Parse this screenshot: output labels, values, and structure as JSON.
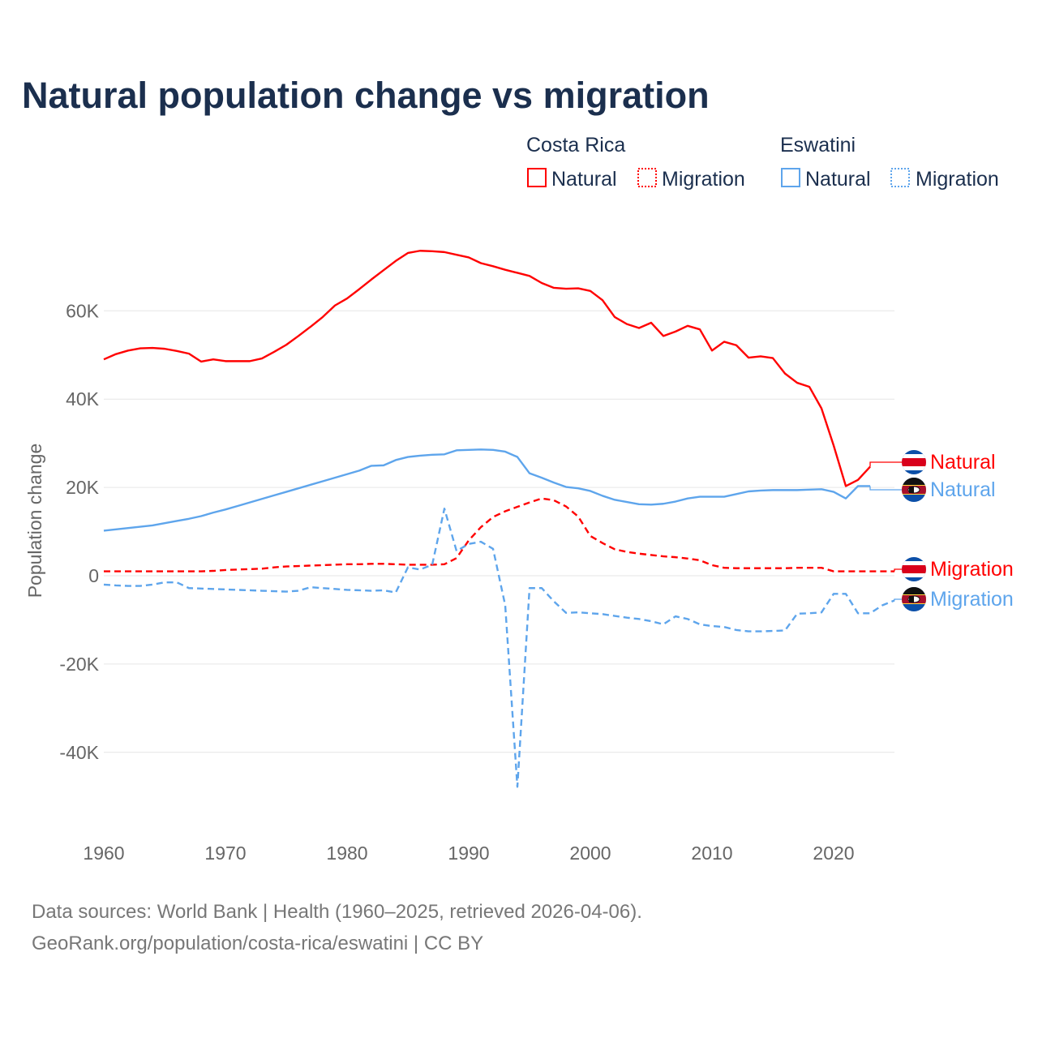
{
  "chart_data": {
    "type": "line",
    "title": "Natural population change vs migration",
    "xlabel": "",
    "ylabel": "Population change",
    "xlim": [
      1960,
      2025
    ],
    "ylim": [
      -50000,
      75000
    ],
    "x_ticks": [
      1960,
      1970,
      1980,
      1990,
      2000,
      2010,
      2020
    ],
    "x_tick_labels": [
      "1960",
      "1970",
      "1980",
      "1990",
      "2000",
      "2010",
      "2020"
    ],
    "y_ticks": [
      -40000,
      -20000,
      0,
      20000,
      40000,
      60000
    ],
    "y_tick_labels": [
      "-40K",
      "-20K",
      "0",
      "20K",
      "40K",
      "60K"
    ],
    "grid": true,
    "legend": {
      "placement": "top-right",
      "groups": [
        {
          "country": "Costa Rica",
          "items": [
            "Natural",
            "Migration"
          ]
        },
        {
          "country": "Eswatini",
          "items": [
            "Natural",
            "Migration"
          ]
        }
      ]
    },
    "x_start": 1960,
    "series": [
      {
        "name": "Costa Rica Natural",
        "label": "Natural",
        "country": "Costa Rica",
        "color": "#ff0000",
        "dashed": false,
        "values": [
          49.0,
          50.2,
          51.0,
          51.5,
          51.6,
          51.4,
          50.9,
          50.3,
          48.5,
          49.0,
          48.6,
          48.6,
          48.6,
          49.2,
          50.7,
          52.3,
          54.3,
          56.4,
          58.6,
          61.2,
          62.8,
          64.9,
          67.1,
          69.2,
          71.3,
          73.1,
          73.6,
          73.5,
          73.3,
          72.7,
          72.1,
          70.8,
          70.1,
          69.3,
          68.6,
          67.9,
          66.3,
          65.2,
          65.0,
          65.1,
          64.5,
          62.4,
          58.6,
          57.0,
          56.1,
          57.3,
          54.3,
          55.3,
          56.6,
          55.8,
          51.0,
          53.0,
          52.2,
          49.4,
          49.7,
          49.3,
          45.8,
          43.7,
          42.8,
          37.9,
          29.5,
          20.3,
          21.7,
          24.7,
          null,
          null
        ]
      },
      {
        "name": "Eswatini Natural",
        "label": "Natural",
        "country": "Eswatini",
        "color": "#5ea5ec",
        "dashed": false,
        "values": [
          10.2,
          10.5,
          10.8,
          11.1,
          11.4,
          11.9,
          12.4,
          12.9,
          13.5,
          14.3,
          15.0,
          15.8,
          16.6,
          17.4,
          18.2,
          19.0,
          19.8,
          20.6,
          21.4,
          22.2,
          23.0,
          23.8,
          24.9,
          25.0,
          26.2,
          26.9,
          27.2,
          27.4,
          27.5,
          28.4,
          28.5,
          28.6,
          28.5,
          28.1,
          26.9,
          23.2,
          22.2,
          21.1,
          20.1,
          19.8,
          19.2,
          18.1,
          17.2,
          16.7,
          16.2,
          16.1,
          16.3,
          16.8,
          17.5,
          17.9,
          17.9,
          17.9,
          18.5,
          19.1,
          19.3,
          19.4,
          19.4,
          19.4,
          19.5,
          19.6,
          19.0,
          17.5,
          20.3,
          20.3,
          null,
          null
        ]
      },
      {
        "name": "Costa Rica Migration",
        "label": "Migration",
        "country": "Costa Rica",
        "color": "#ff0000",
        "dashed": true,
        "values": [
          1.0,
          1.0,
          1.0,
          1.0,
          1.0,
          1.0,
          1.0,
          1.0,
          1.0,
          1.1,
          1.3,
          1.4,
          1.5,
          1.6,
          1.9,
          2.1,
          2.2,
          2.3,
          2.4,
          2.5,
          2.6,
          2.6,
          2.7,
          2.7,
          2.6,
          2.5,
          2.5,
          2.5,
          2.6,
          4.0,
          8.0,
          11.0,
          13.3,
          14.6,
          15.6,
          16.6,
          17.5,
          17.1,
          15.7,
          13.4,
          9.0,
          7.4,
          6.0,
          5.4,
          5.0,
          4.7,
          4.4,
          4.2,
          3.9,
          3.5,
          2.4,
          1.8,
          1.7,
          1.7,
          1.7,
          1.7,
          1.7,
          1.8,
          1.8,
          1.8,
          1.0,
          1.0,
          1.0,
          1.0,
          1.0,
          1.0
        ]
      },
      {
        "name": "Eswatini Migration",
        "label": "Migration",
        "country": "Eswatini",
        "color": "#5ea5ec",
        "dashed": true,
        "values": [
          -2.0,
          -2.2,
          -2.3,
          -2.3,
          -2.0,
          -1.5,
          -1.5,
          -2.8,
          -2.9,
          -3.0,
          -3.1,
          -3.2,
          -3.3,
          -3.4,
          -3.5,
          -3.6,
          -3.4,
          -2.6,
          -2.8,
          -3.0,
          -3.2,
          -3.3,
          -3.4,
          -3.3,
          -3.8,
          1.9,
          1.4,
          2.5,
          15.2,
          5.6,
          7.2,
          7.7,
          6.1,
          -6.7,
          -47.8,
          -2.8,
          -2.8,
          -5.8,
          -8.4,
          -8.3,
          -8.5,
          -8.7,
          -9.1,
          -9.5,
          -9.8,
          -10.3,
          -11.0,
          -9.2,
          -9.8,
          -11.0,
          -11.4,
          -11.6,
          -12.3,
          -12.6,
          -12.6,
          -12.5,
          -12.4,
          -8.6,
          -8.5,
          -8.3,
          -4.1,
          -4.1,
          -8.5,
          -8.5,
          -6.7,
          -5.6
        ]
      }
    ],
    "value_unit": "thousands"
  },
  "footer": {
    "line1": "Data sources: World Bank | Health (1960–2025, retrieved 2026-04-06).",
    "line2": "GeoRank.org/population/costa-rica/eswatini | CC BY"
  }
}
